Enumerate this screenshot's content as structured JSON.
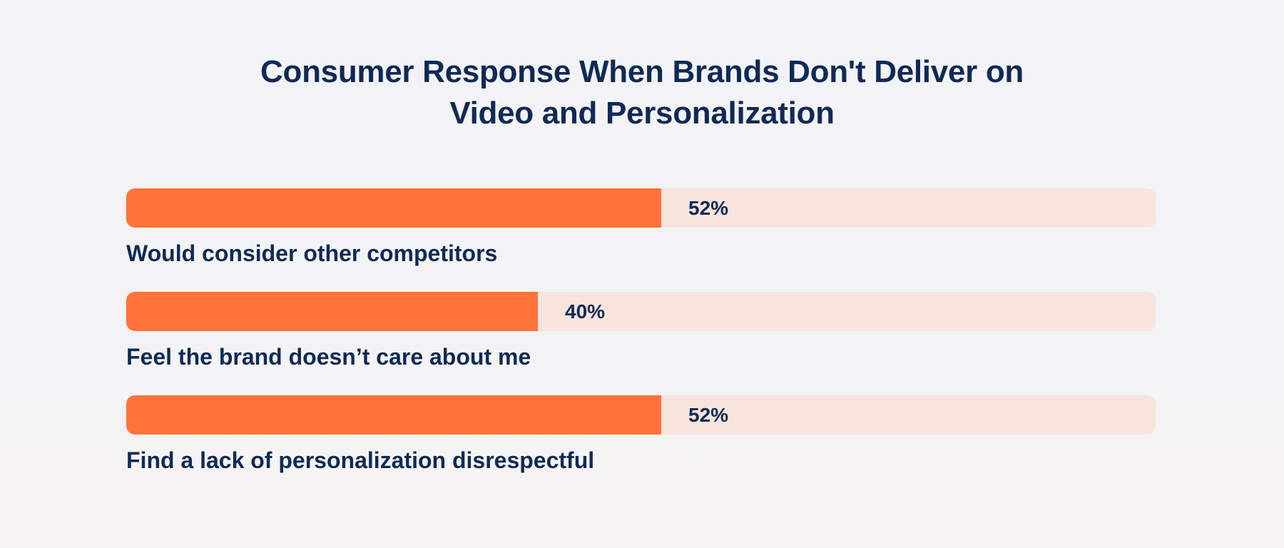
{
  "title": {
    "line1": "Consumer Response When Brands Don't Deliver on",
    "line2": "Video and Personalization"
  },
  "colors": {
    "fill": "#ff723a",
    "track": "#f6e4dd",
    "text": "#0f2a55",
    "background": "#f3f3f6"
  },
  "bars": [
    {
      "label": "Would consider other competitors",
      "value": 52,
      "value_label": "52%"
    },
    {
      "label": "Feel the brand doesn’t care about me",
      "value": 40,
      "value_label": "40%"
    },
    {
      "label": "Find a lack of personalization disrespectful",
      "value": 52,
      "value_label": "52%"
    }
  ],
  "chart_data": {
    "type": "bar",
    "orientation": "horizontal",
    "title": "Consumer Response When Brands Don't Deliver on Video and Personalization",
    "categories": [
      "Would consider other competitors",
      "Feel the brand doesn’t care about me",
      "Find a lack of personalization disrespectful"
    ],
    "values": [
      52,
      40,
      52
    ],
    "value_labels": [
      "52%",
      "40%",
      "52%"
    ],
    "xlabel": "",
    "ylabel": "",
    "xlim": [
      0,
      100
    ],
    "unit": "%",
    "grid": false,
    "legend": null
  }
}
